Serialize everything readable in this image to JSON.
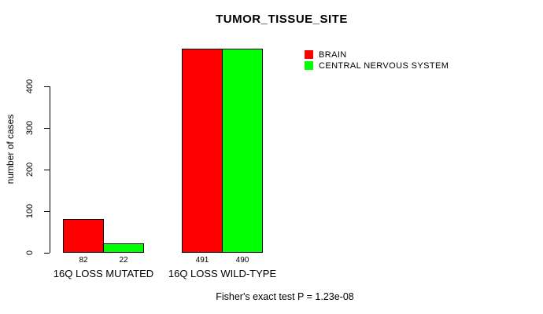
{
  "chart_data": {
    "type": "bar",
    "title": "TUMOR_TISSUE_SITE",
    "ylabel": "number of cases",
    "xlabel": "",
    "ylim": [
      0,
      400
    ],
    "yticks": [
      0,
      100,
      200,
      300,
      400
    ],
    "grid": false,
    "legend_position": "top-right",
    "categories": [
      "16Q LOSS MUTATED",
      "16Q LOSS WILD-TYPE"
    ],
    "series": [
      {
        "name": "BRAIN",
        "color": "#ff0000",
        "values": [
          82,
          491
        ]
      },
      {
        "name": "CENTRAL NERVOUS SYSTEM",
        "color": "#00ff00",
        "values": [
          22,
          490
        ]
      }
    ],
    "caption": "Fisher's exact test P = 1.23e-08",
    "axis_color": "#000000",
    "background_color": "#ffffff"
  }
}
